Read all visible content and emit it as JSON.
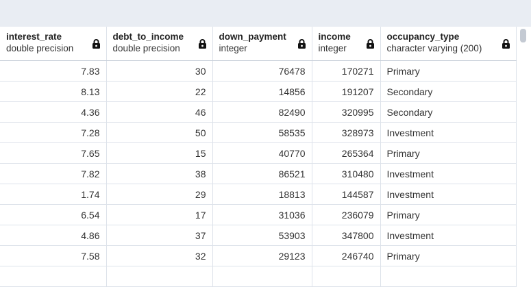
{
  "columns": [
    {
      "name": "interest_rate",
      "type": "double precision"
    },
    {
      "name": "debt_to_income",
      "type": "double precision"
    },
    {
      "name": "down_payment",
      "type": "integer"
    },
    {
      "name": "income",
      "type": "integer"
    },
    {
      "name": "occupancy_type",
      "type": "character varying (200)"
    }
  ],
  "rows": [
    [
      "7.83",
      "30",
      "76478",
      "170271",
      "Primary"
    ],
    [
      "8.13",
      "22",
      "14856",
      "191207",
      "Secondary"
    ],
    [
      "4.36",
      "46",
      "82490",
      "320995",
      "Secondary"
    ],
    [
      "7.28",
      "50",
      "58535",
      "328973",
      "Investment"
    ],
    [
      "7.65",
      "15",
      "40770",
      "265364",
      "Primary"
    ],
    [
      "7.82",
      "38",
      "86521",
      "310480",
      "Investment"
    ],
    [
      "1.74",
      "29",
      "18813",
      "144587",
      "Investment"
    ],
    [
      "6.54",
      "17",
      "31036",
      "236079",
      "Primary"
    ],
    [
      "4.86",
      "37",
      "53903",
      "347800",
      "Investment"
    ],
    [
      "7.58",
      "32",
      "29123",
      "246740",
      "Primary"
    ],
    [
      "",
      "",
      "",
      "",
      ""
    ]
  ],
  "icons": {
    "column_lock": "lock-icon"
  }
}
